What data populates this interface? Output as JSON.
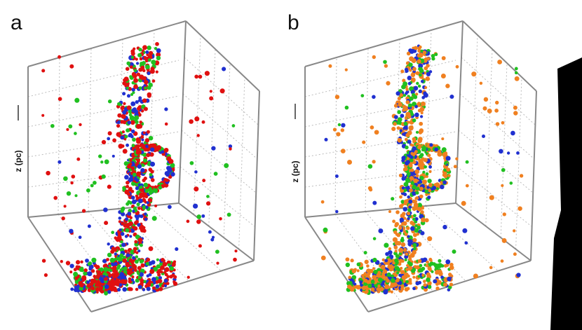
{
  "panels": [
    {
      "label": "a",
      "axis_label": "z (pc)"
    },
    {
      "label": "b",
      "axis_label": "z (pc)"
    }
  ]
}
